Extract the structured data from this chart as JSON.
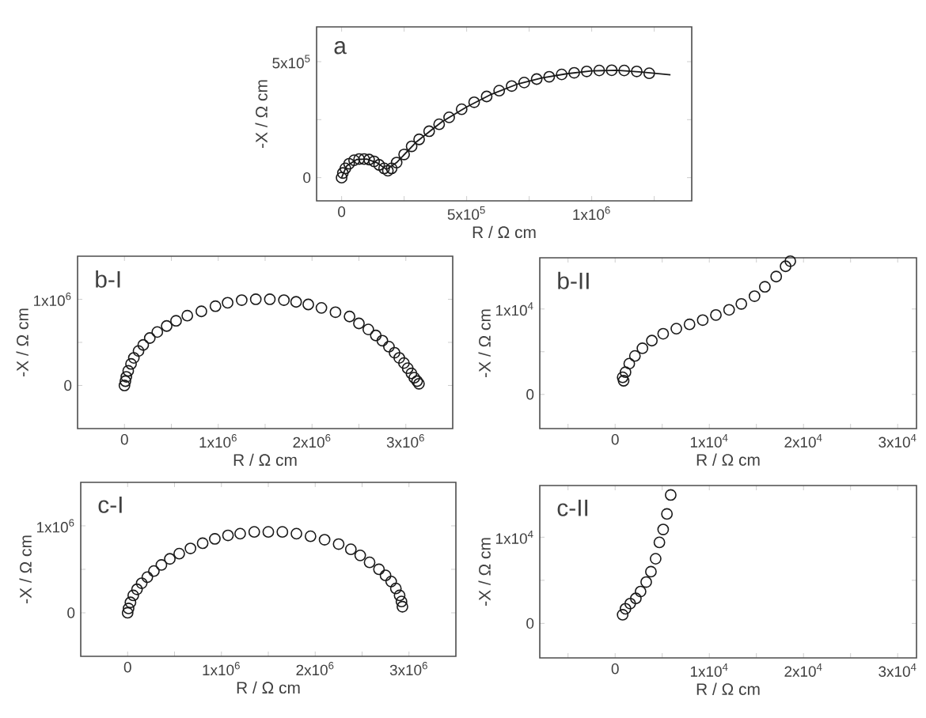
{
  "chart_data": [
    {
      "type": "scatter",
      "title": "a",
      "xlabel": "R / Ω cm",
      "ylabel": "-X / Ω cm",
      "marker": "circle",
      "xlim": [
        -100000,
        1400000
      ],
      "ylim": [
        -100000,
        650000
      ],
      "xticks": [
        0,
        {
          "value": 250000,
          "label": null
        },
        {
          "value": 500000,
          "label": "5x10$^{5}$"
        },
        {
          "value": 750000,
          "label": null
        },
        {
          "value": 1000000,
          "label": "1x10$^{6}$"
        },
        {
          "value": 1250000,
          "label": null
        }
      ],
      "yticks": [
        0,
        {
          "value": 250000,
          "label": null
        },
        {
          "value": 500000,
          "label": "5x10$^{5}$"
        }
      ],
      "series": [
        {
          "color": "#1a1a1a",
          "x": [
            0,
            5000,
            15000,
            30000,
            50000,
            70000,
            90000,
            110000,
            130000,
            150000,
            170000,
            185000,
            200000,
            220000,
            250000,
            280000,
            310000,
            350000,
            390000,
            430000,
            480000,
            530000,
            580000,
            630000,
            680000,
            730000,
            780000,
            830000,
            880000,
            930000,
            980000,
            1030000,
            1080000,
            1130000,
            1180000,
            1230000
          ],
          "values": [
            0,
            20000,
            40000,
            60000,
            75000,
            80000,
            80000,
            78000,
            70000,
            55000,
            40000,
            30000,
            40000,
            65000,
            100000,
            135000,
            165000,
            200000,
            230000,
            260000,
            295000,
            325000,
            350000,
            375000,
            395000,
            410000,
            425000,
            435000,
            445000,
            452000,
            458000,
            462000,
            463000,
            462000,
            458000,
            450000
          ]
        },
        {
          "type": "line",
          "marker": "none",
          "color": "#1a1a1a",
          "x": [
            0,
            20000,
            60000,
            100000,
            140000,
            180000,
            220000,
            300000,
            400000,
            500000,
            600000,
            700000,
            800000,
            900000,
            1000000,
            1100000,
            1200000,
            1315000
          ],
          "values": [
            0,
            50000,
            78000,
            80000,
            65000,
            35000,
            65000,
            155000,
            240000,
            305000,
            360000,
            402000,
            430000,
            448000,
            460000,
            463000,
            455000,
            443000
          ]
        }
      ]
    },
    {
      "type": "scatter",
      "title": "b-I",
      "xlabel": "R / Ω cm",
      "ylabel": "-X / Ω cm",
      "marker": "circle",
      "xlim": [
        -500000,
        3500000
      ],
      "ylim": [
        -500000,
        1500000
      ],
      "xticks": [
        0,
        {
          "value": 500000,
          "label": null
        },
        {
          "value": 1000000,
          "label": "1x10$^{6}$"
        },
        {
          "value": 1500000,
          "label": null
        },
        {
          "value": 2000000,
          "label": "2x10$^{6}$"
        },
        {
          "value": 2500000,
          "label": null
        },
        {
          "value": 3000000,
          "label": "3x10$^{6}$"
        }
      ],
      "yticks": [
        0,
        {
          "value": 500000,
          "label": null
        },
        {
          "value": 1000000,
          "label": "1x10$^{6}$"
        }
      ],
      "series": [
        {
          "color": "#1a1a1a",
          "x": [
            0,
            10000,
            20000,
            40000,
            70000,
            100000,
            150000,
            200000,
            270000,
            350000,
            450000,
            550000,
            670000,
            820000,
            970000,
            1100000,
            1250000,
            1400000,
            1550000,
            1700000,
            1830000,
            1960000,
            2100000,
            2250000,
            2400000,
            2500000,
            2600000,
            2680000,
            2750000,
            2820000,
            2880000,
            2930000,
            2980000,
            3020000,
            3060000,
            3090000,
            3120000,
            3140000
          ],
          "values": [
            0,
            50000,
            100000,
            170000,
            250000,
            320000,
            400000,
            470000,
            550000,
            620000,
            690000,
            750000,
            810000,
            860000,
            920000,
            960000,
            990000,
            1000000,
            1000000,
            990000,
            970000,
            940000,
            900000,
            850000,
            800000,
            720000,
            650000,
            580000,
            520000,
            450000,
            380000,
            320000,
            260000,
            200000,
            140000,
            90000,
            50000,
            20000
          ]
        }
      ]
    },
    {
      "type": "scatter",
      "title": "b-II",
      "xlabel": "R / Ω cm",
      "ylabel": "-X / Ω cm",
      "marker": "circle",
      "xlim": [
        -8000,
        32000
      ],
      "ylim": [
        -4000,
        16000
      ],
      "xticks": [
        {
          "value": -5000,
          "label": null
        },
        0,
        {
          "value": 5000,
          "label": null
        },
        {
          "value": 10000,
          "label": "1x10$^{4}$"
        },
        {
          "value": 15000,
          "label": null
        },
        {
          "value": 20000,
          "label": "2x10$^{4}$"
        },
        {
          "value": 25000,
          "label": null
        },
        {
          "value": 30000,
          "label": "3x10$^{4}$"
        }
      ],
      "yticks": [
        0,
        {
          "value": 5000,
          "label": null
        },
        {
          "value": 10000,
          "label": "1x10$^{4}$"
        }
      ],
      "series": [
        {
          "color": "#1a1a1a",
          "x": [
            900,
            800,
            1100,
            1500,
            2100,
            2900,
            3900,
            5100,
            6500,
            7900,
            9300,
            10700,
            12100,
            13400,
            14800,
            15900,
            17100,
            18100,
            18600
          ],
          "values": [
            1600,
            2000,
            2600,
            3600,
            4500,
            5400,
            6300,
            7100,
            7700,
            8200,
            8700,
            9300,
            9900,
            10600,
            11500,
            12600,
            13800,
            15000,
            15600
          ]
        }
      ]
    },
    {
      "type": "scatter",
      "title": "c-I",
      "xlabel": "R / Ω cm",
      "ylabel": "-X / Ω cm",
      "marker": "circle",
      "xlim": [
        -500000,
        3500000
      ],
      "ylim": [
        -500000,
        1500000
      ],
      "xticks": [
        0,
        {
          "value": 500000,
          "label": null
        },
        {
          "value": 1000000,
          "label": "1x10$^{6}$"
        },
        {
          "value": 1500000,
          "label": null
        },
        {
          "value": 2000000,
          "label": "2x10$^{6}$"
        },
        {
          "value": 2500000,
          "label": null
        },
        {
          "value": 3000000,
          "label": "3x10$^{6}$"
        }
      ],
      "yticks": [
        0,
        {
          "value": 500000,
          "label": null
        },
        {
          "value": 1000000,
          "label": "1x10$^{6}$"
        }
      ],
      "series": [
        {
          "color": "#1a1a1a",
          "x": [
            0,
            10000,
            30000,
            60000,
            100000,
            150000,
            210000,
            280000,
            360000,
            450000,
            550000,
            670000,
            800000,
            930000,
            1070000,
            1200000,
            1350000,
            1500000,
            1650000,
            1800000,
            1950000,
            2100000,
            2250000,
            2380000,
            2480000,
            2580000,
            2680000,
            2750000,
            2810000,
            2860000,
            2900000,
            2920000,
            2930000
          ],
          "values": [
            0,
            50000,
            120000,
            200000,
            270000,
            340000,
            410000,
            480000,
            550000,
            620000,
            680000,
            740000,
            800000,
            850000,
            890000,
            910000,
            930000,
            930000,
            930000,
            910000,
            880000,
            840000,
            790000,
            730000,
            660000,
            580000,
            500000,
            430000,
            360000,
            280000,
            200000,
            130000,
            70000
          ]
        }
      ]
    },
    {
      "type": "scatter",
      "title": "c-II",
      "xlabel": "R / Ω cm",
      "ylabel": "-X / Ω cm",
      "marker": "circle",
      "xlim": [
        -8000,
        32000
      ],
      "ylim": [
        -4000,
        16000
      ],
      "xticks": [
        {
          "value": -5000,
          "label": null
        },
        0,
        {
          "value": 5000,
          "label": null
        },
        {
          "value": 10000,
          "label": "1x10$^{4}$"
        },
        {
          "value": 15000,
          "label": null
        },
        {
          "value": 20000,
          "label": "2x10$^{4}$"
        },
        {
          "value": 25000,
          "label": null
        },
        {
          "value": 30000,
          "label": "3x10$^{4}$"
        }
      ],
      "yticks": [
        0,
        {
          "value": 5000,
          "label": null
        },
        {
          "value": 10000,
          "label": "1x10$^{4}$"
        }
      ],
      "series": [
        {
          "color": "#1a1a1a",
          "x": [
            800,
            1100,
            1600,
            2200,
            2700,
            3300,
            3800,
            4300,
            4700,
            5100,
            5500,
            5900
          ],
          "values": [
            1000,
            1700,
            2300,
            2900,
            3700,
            4800,
            6000,
            7500,
            9400,
            10900,
            12700,
            14900
          ]
        }
      ]
    }
  ]
}
